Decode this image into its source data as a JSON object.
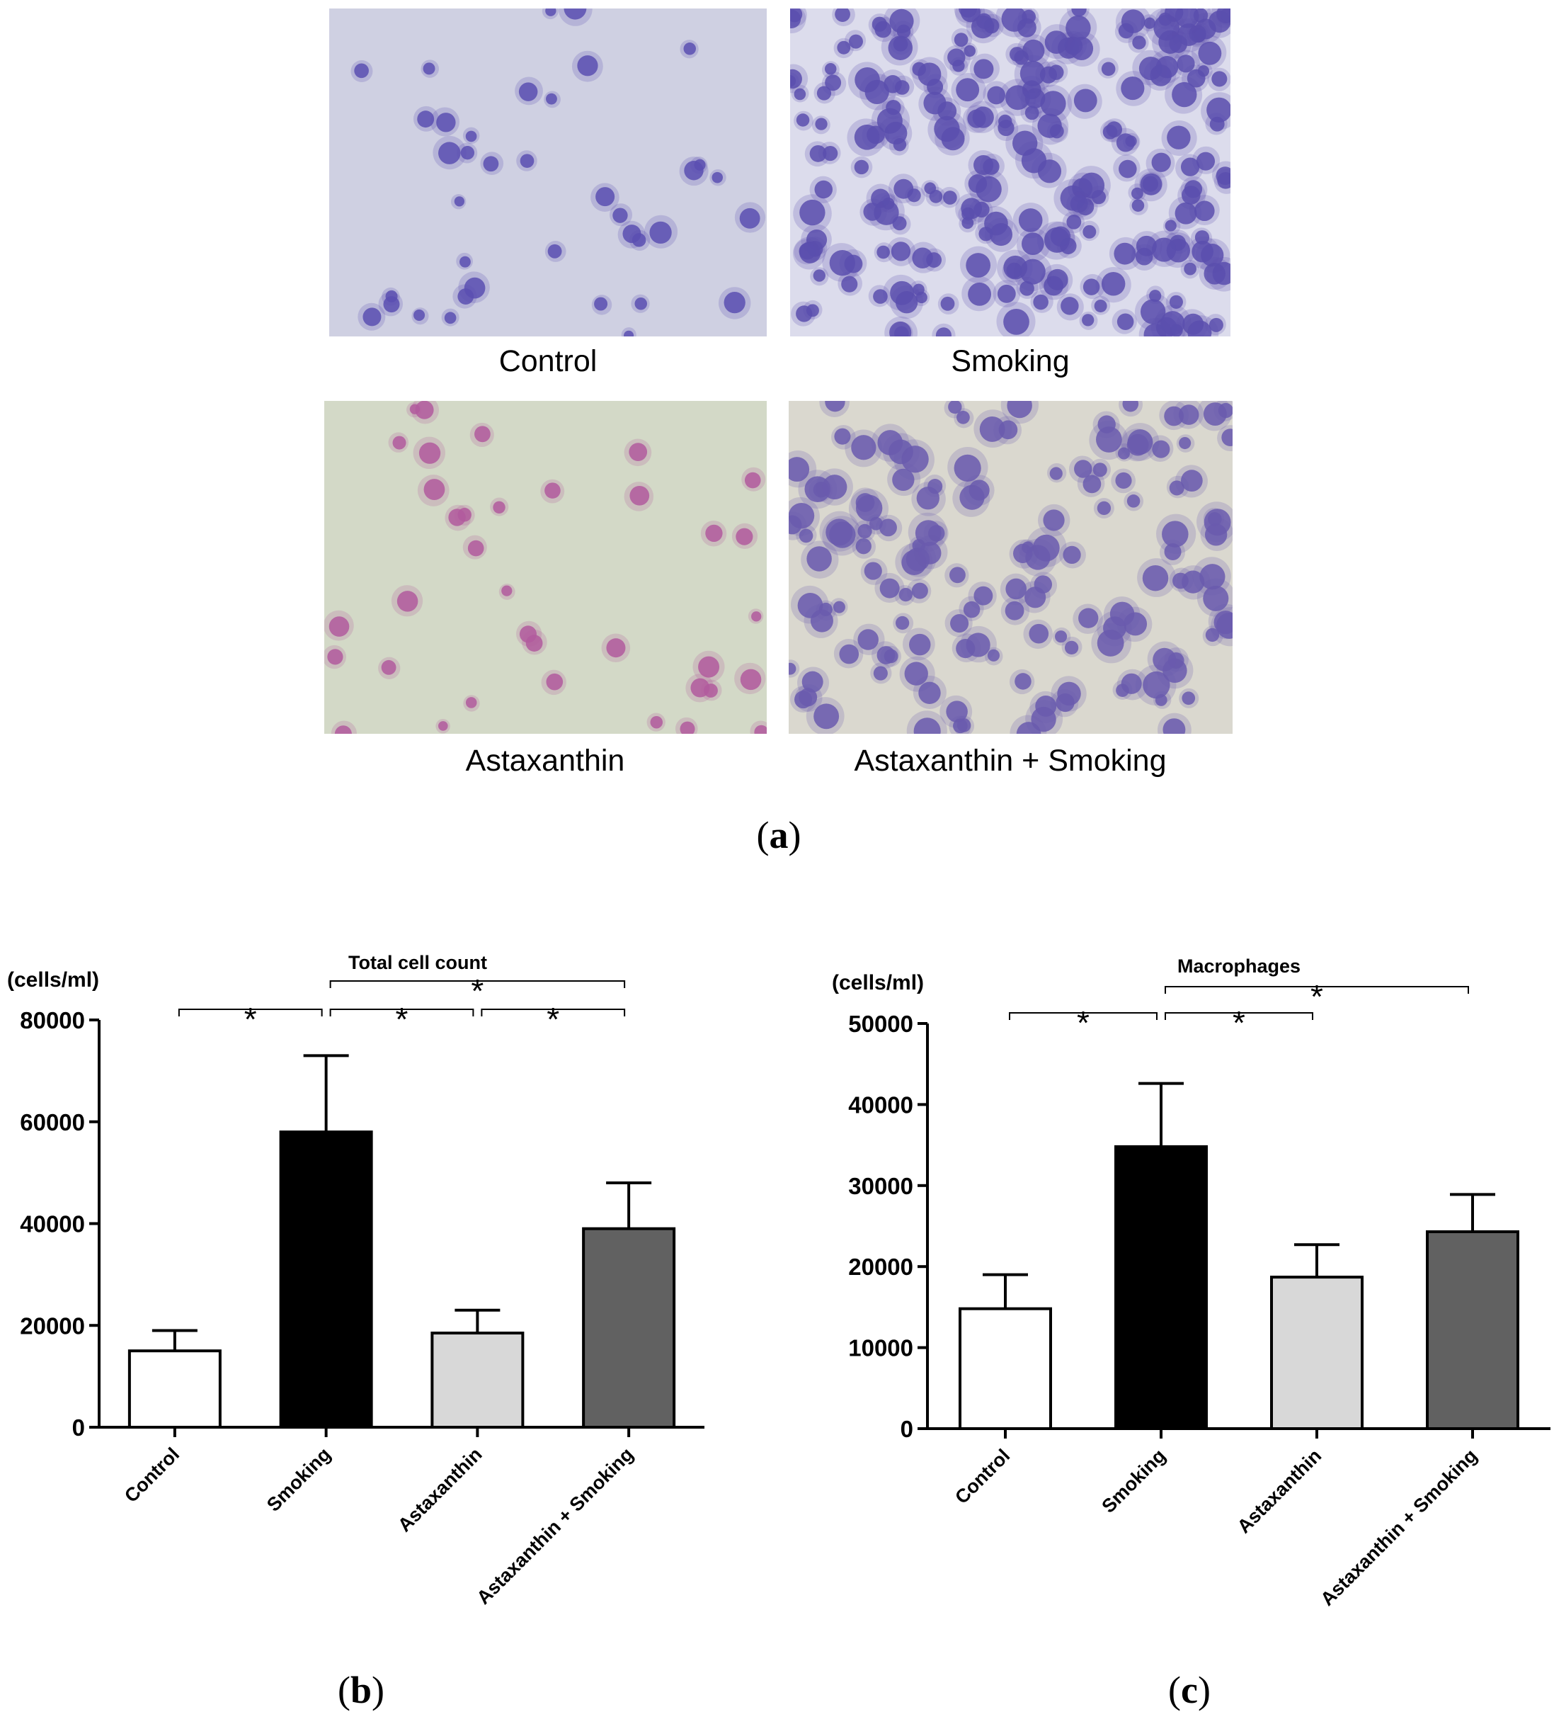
{
  "figure": {
    "panel_a": {
      "letter": "a",
      "images": [
        {
          "caption": "Control",
          "background": "#cfd0e2",
          "cell_color": "#5b4fb2",
          "cell_count": 38,
          "cell_scale": 1.0
        },
        {
          "caption": "Smoking",
          "background": "#dcdcec",
          "cell_color": "#5a4fae",
          "cell_count": 230,
          "cell_scale": 1.15
        },
        {
          "caption": "Astaxanthin",
          "background": "#d3d9c7",
          "cell_color": "#b25a9d",
          "cell_count": 36,
          "cell_scale": 0.95
        },
        {
          "caption": "Astaxanthin + Smoking",
          "background": "#dad8cf",
          "cell_color": "#6a5aae",
          "cell_count": 140,
          "cell_scale": 1.2
        }
      ]
    },
    "panel_b": {
      "letter": "b"
    },
    "panel_c": {
      "letter": "c"
    }
  },
  "chart_data": [
    {
      "type": "bar",
      "title": "Total cell count",
      "ylabel": "(cells/ml)",
      "categories": [
        "Control",
        "Smoking",
        "Astaxanthin",
        "Astaxanthin + Smoking"
      ],
      "values": [
        15000,
        58000,
        18500,
        39000
      ],
      "errors": [
        4000,
        15000,
        4500,
        9000
      ],
      "bar_colors": [
        "#ffffff",
        "#000000",
        "#d8d8d8",
        "#616161"
      ],
      "ylim": [
        0,
        80000
      ],
      "yticks": [
        "0",
        "20000",
        "40000",
        "60000",
        "80000"
      ],
      "significance": [
        {
          "from": 0,
          "to": 1,
          "level": 0,
          "label": "*"
        },
        {
          "from": 1,
          "to": 2,
          "level": 0,
          "label": "*"
        },
        {
          "from": 2,
          "to": 3,
          "level": 0,
          "label": "*"
        },
        {
          "from": 1,
          "to": 3,
          "level": 1,
          "label": "*"
        }
      ]
    },
    {
      "type": "bar",
      "title": "Macrophages",
      "ylabel": "(cells/ml)",
      "categories": [
        "Control",
        "Smoking",
        "Astaxanthin",
        "Astaxanthin + Smoking"
      ],
      "values": [
        14800,
        34800,
        18700,
        24300
      ],
      "errors": [
        4200,
        7800,
        4000,
        4600
      ],
      "bar_colors": [
        "#ffffff",
        "#000000",
        "#d8d8d8",
        "#616161"
      ],
      "ylim": [
        0,
        50000
      ],
      "yticks": [
        "0",
        "10000",
        "20000",
        "30000",
        "40000",
        "50000"
      ],
      "significance": [
        {
          "from": 0,
          "to": 1,
          "level": 0,
          "label": "*"
        },
        {
          "from": 1,
          "to": 2,
          "level": 0,
          "label": "*"
        },
        {
          "from": 1,
          "to": 3,
          "level": 1,
          "label": "*"
        }
      ]
    }
  ]
}
